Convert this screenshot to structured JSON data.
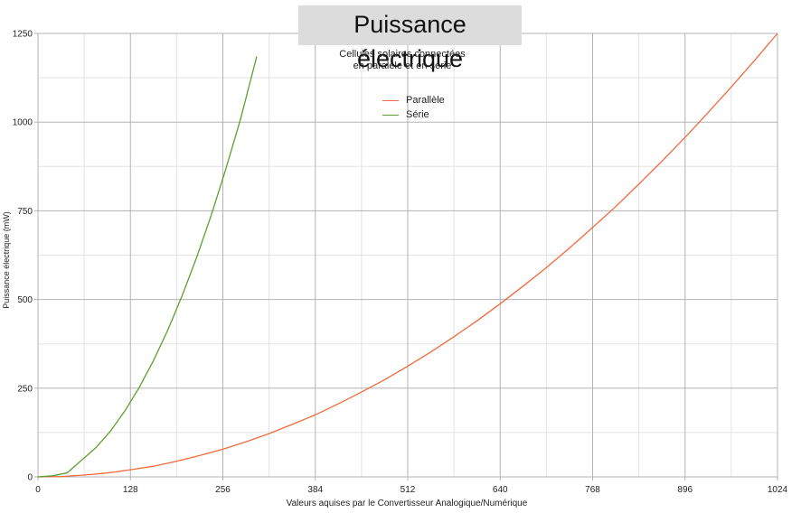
{
  "chart_data": {
    "type": "line",
    "title": "Puissance électrique",
    "subtitle_lines": [
      "Cellules solaires connectées",
      "en paralèle et en série"
    ],
    "xlabel": "Valeurs aquises par le Convertisseur Analogique/Numérique",
    "ylabel": "Puissance électrique (mW)",
    "xlim": [
      0,
      1024
    ],
    "ylim": [
      0,
      1250
    ],
    "x_ticks": [
      0,
      128,
      256,
      384,
      512,
      640,
      768,
      896,
      1024
    ],
    "y_ticks": [
      0,
      250,
      500,
      750,
      1000,
      1250
    ],
    "grid": true,
    "legend_position": "top-center",
    "series": [
      {
        "name": "Parallèle",
        "color": "#f26a3d",
        "x": [
          0,
          32,
          64,
          96,
          128,
          160,
          192,
          224,
          256,
          288,
          320,
          352,
          384,
          416,
          448,
          480,
          512,
          544,
          576,
          608,
          640,
          672,
          704,
          736,
          768,
          800,
          832,
          864,
          896,
          928,
          960,
          992,
          1024
        ],
        "y": [
          0,
          1,
          5,
          11,
          20,
          30,
          44,
          60,
          78,
          99,
          122,
          148,
          175,
          206,
          239,
          274,
          312,
          352,
          395,
          440,
          488,
          538,
          590,
          645,
          703,
          762,
          825,
          890,
          957,
          1027,
          1099,
          1173,
          1250
        ]
      },
      {
        "name": "Série",
        "color": "#5e9e2f",
        "x": [
          0,
          20,
          40,
          60,
          80,
          100,
          120,
          140,
          160,
          180,
          200,
          220,
          240,
          260,
          280,
          303
        ],
        "y": [
          0,
          3,
          11,
          46,
          82,
          128,
          185,
          251,
          328,
          415,
          513,
          620,
          738,
          867,
          1005,
          1185
        ]
      }
    ]
  }
}
